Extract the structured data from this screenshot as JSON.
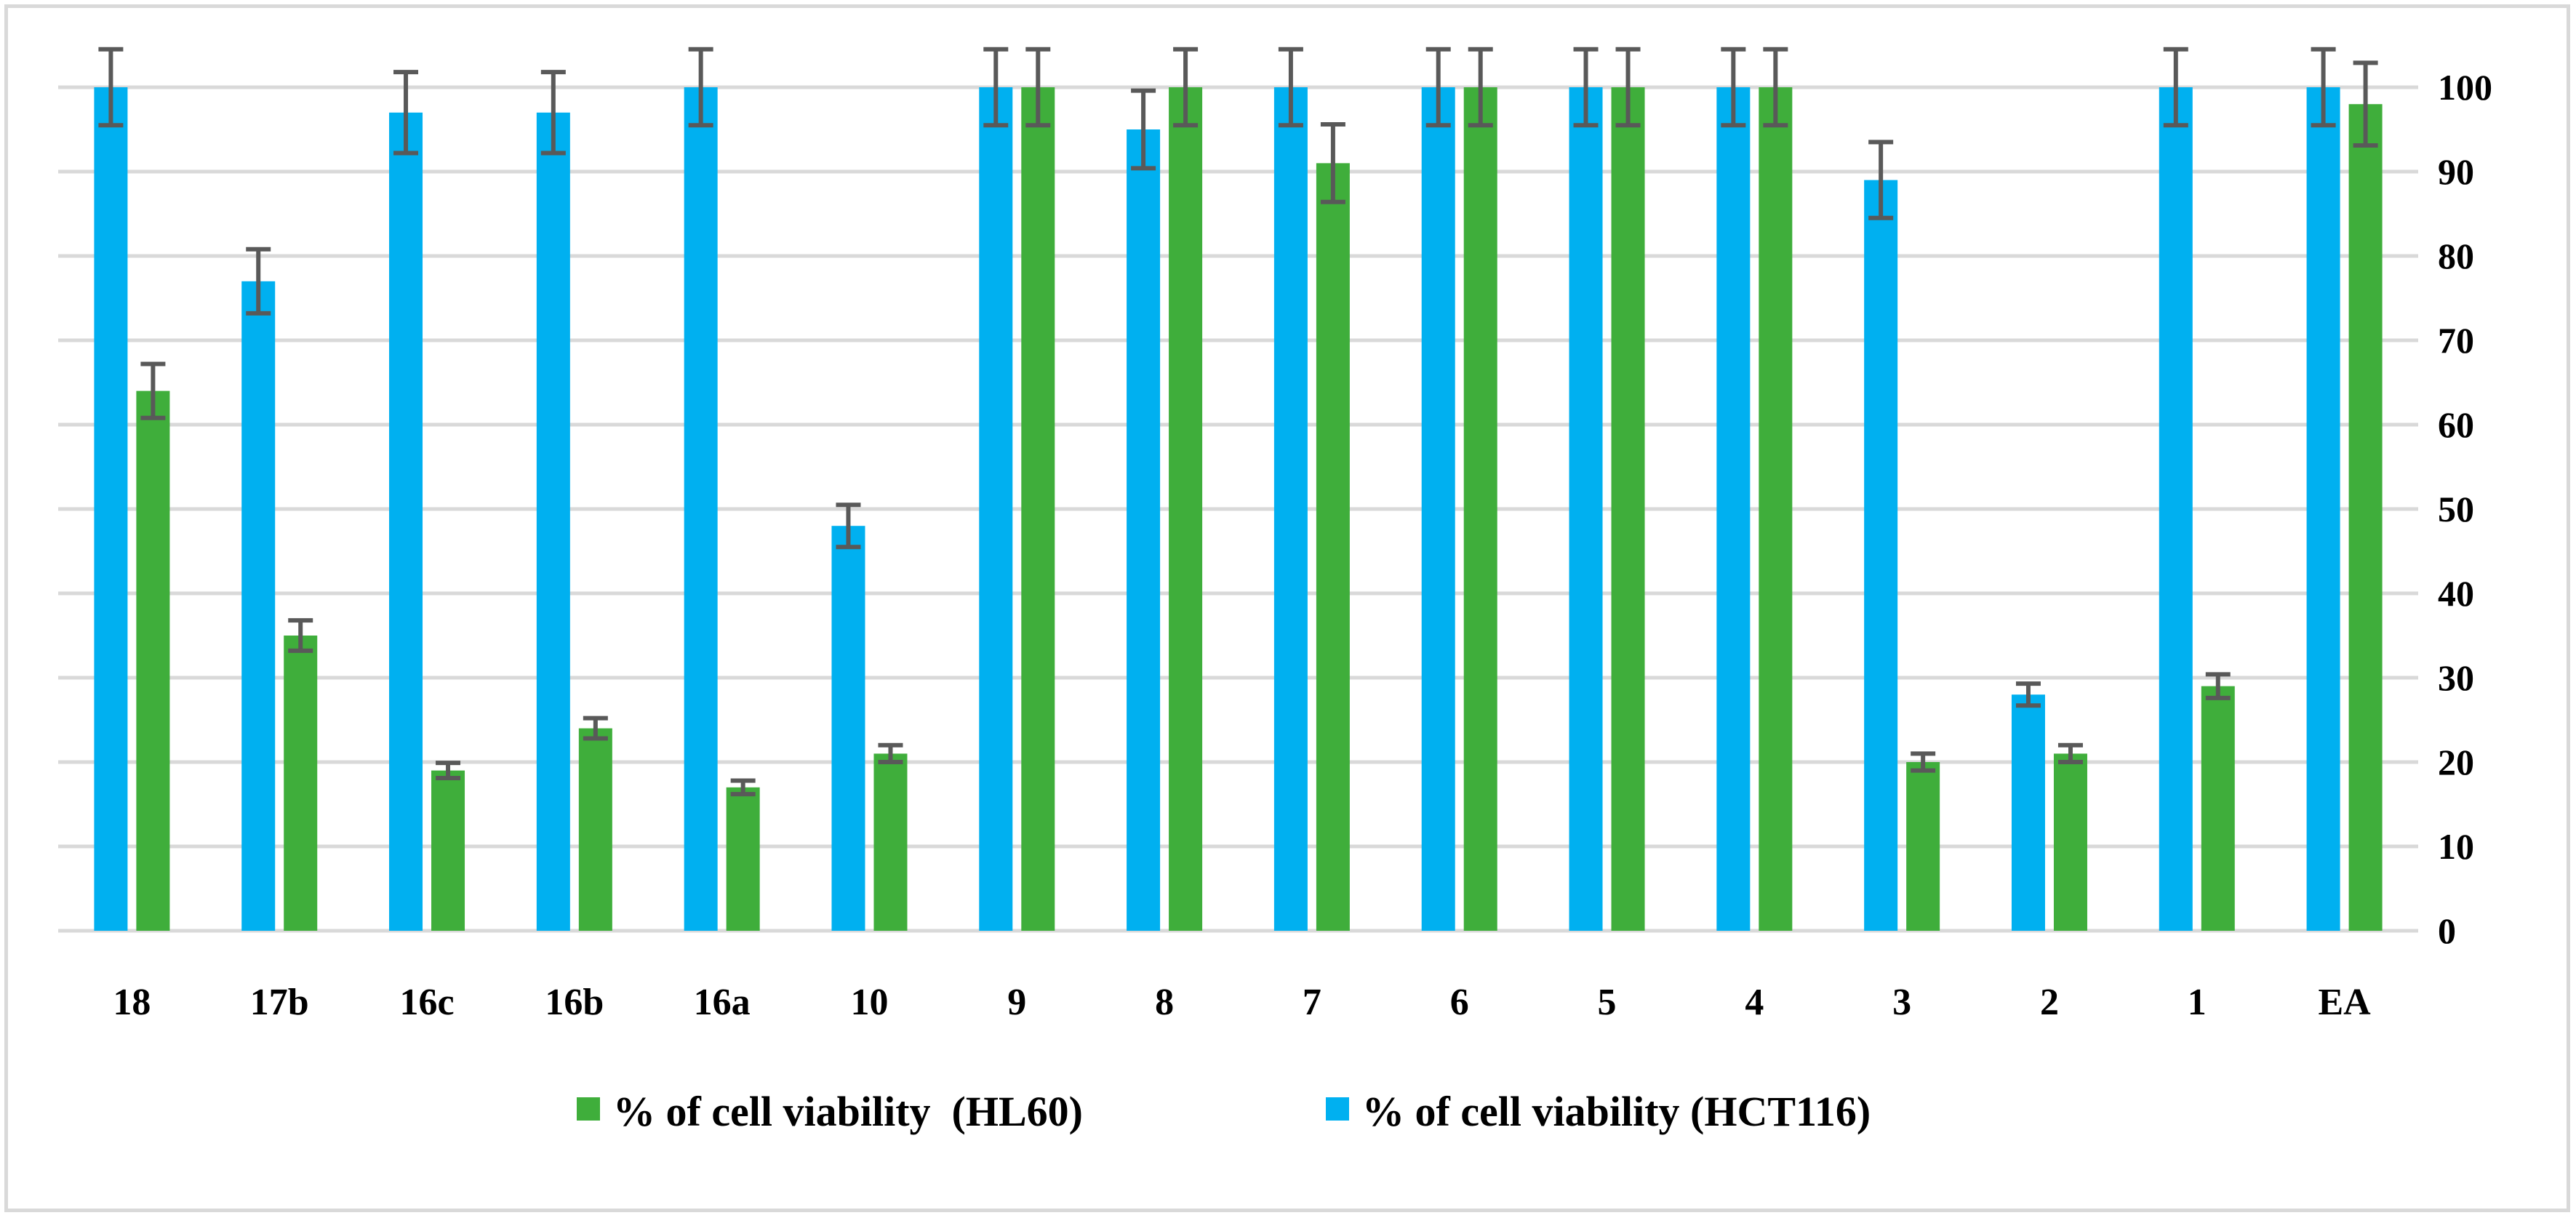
{
  "chart_data": {
    "type": "bar",
    "title": "",
    "xlabel": "",
    "ylabel": "",
    "ylim": [
      0,
      100
    ],
    "y_ticks": [
      "0",
      "10",
      "20",
      "30",
      "40",
      "50",
      "60",
      "70",
      "80",
      "90",
      "100"
    ],
    "y_axis_side": "right",
    "grid": true,
    "legend_position": "bottom",
    "categories": [
      "18",
      "17b",
      "16c",
      "16b",
      "16a",
      "10",
      "9",
      "8",
      "7",
      "6",
      "5",
      "4",
      "3",
      "2",
      "1",
      "EA"
    ],
    "series": [
      {
        "name": "% of cell viability (HCT116)",
        "color": "#00b0f0",
        "values": [
          100,
          77,
          97,
          97,
          100,
          48,
          100,
          95,
          100,
          100,
          100,
          100,
          89,
          28,
          100,
          100
        ],
        "errors": [
          4.5,
          3.8,
          4.8,
          4.8,
          4.5,
          2.5,
          4.5,
          4.6,
          4.5,
          4.5,
          4.5,
          4.5,
          4.5,
          1.3,
          4.5,
          4.5
        ]
      },
      {
        "name": "% of cell viability  (HL60)",
        "color": "#3fae3b",
        "values": [
          64,
          35,
          19,
          24,
          17,
          21,
          100,
          100,
          91,
          100,
          100,
          100,
          20,
          21,
          29,
          98
        ],
        "errors": [
          3.2,
          1.8,
          0.9,
          1.2,
          0.8,
          1.0,
          4.5,
          4.5,
          4.6,
          4.5,
          4.5,
          4.5,
          1.0,
          1.0,
          1.4,
          4.9
        ]
      }
    ],
    "legend": [
      {
        "label": "% of cell viability  (HL60)",
        "color": "#3fae3b"
      },
      {
        "label": "% of cell viability (HCT116)",
        "color": "#00b0f0"
      }
    ]
  }
}
